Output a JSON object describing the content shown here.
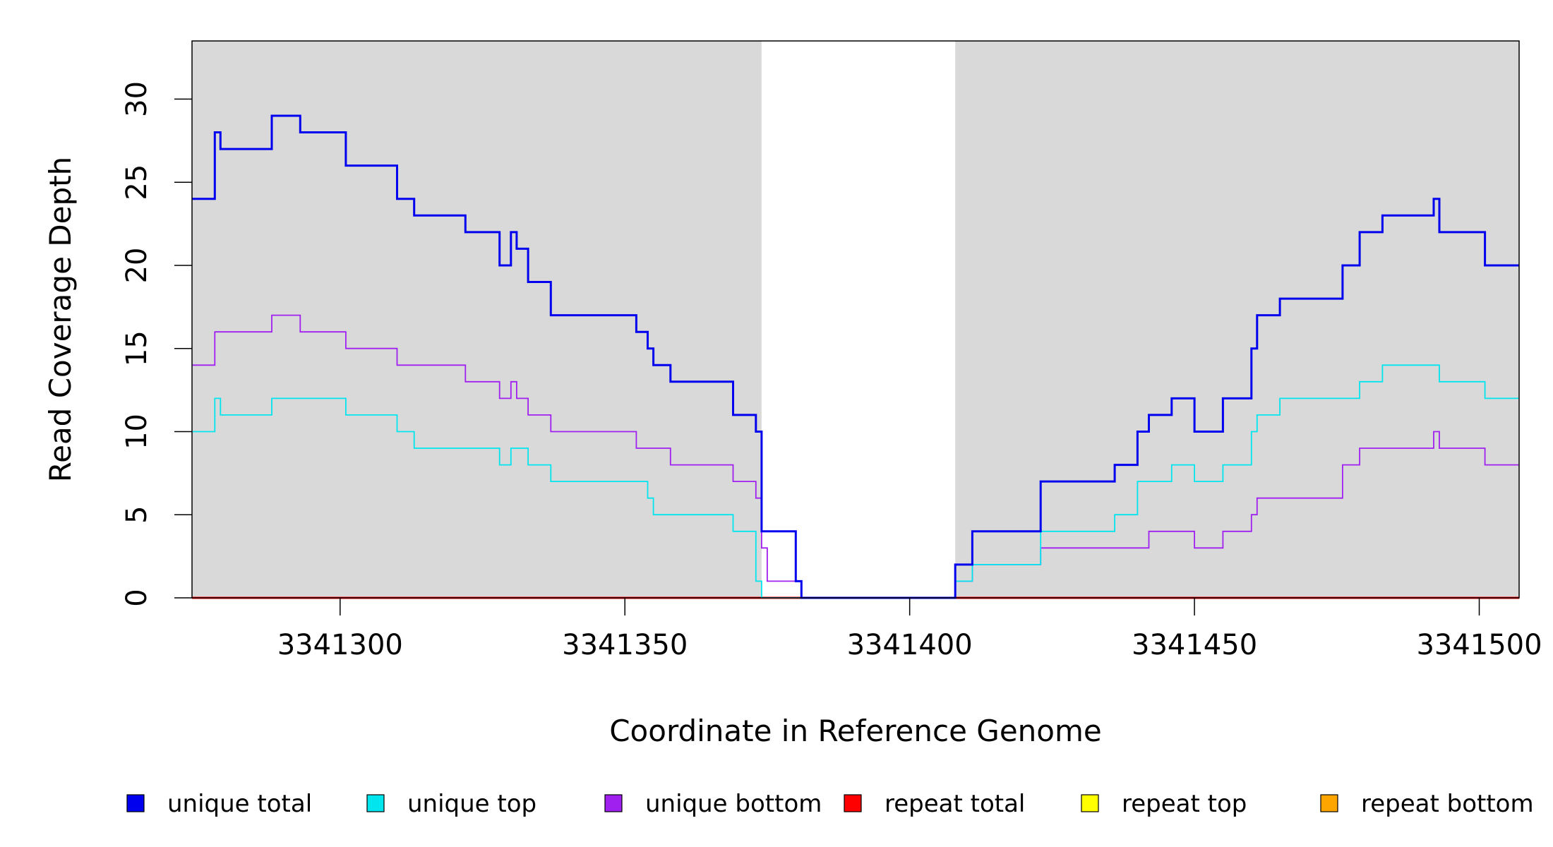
{
  "chart_data": {
    "type": "line",
    "line_shape": "step",
    "xlabel": "Coordinate in Reference Genome",
    "ylabel": "Read Coverage Depth",
    "xlim": [
      3341274,
      3341507
    ],
    "ylim": [
      0,
      33.5
    ],
    "x_ticks": [
      3341300,
      3341350,
      3341400,
      3341450,
      3341500
    ],
    "x_tick_labels": [
      "3341300",
      "3341350",
      "3341400",
      "3341450",
      "3341500"
    ],
    "y_ticks": [
      0,
      5,
      10,
      15,
      20,
      25,
      30
    ],
    "y_tick_labels": [
      "0",
      "5",
      "10",
      "15",
      "20",
      "25",
      "30"
    ],
    "background_color": "#d9d9d9",
    "shaded_regions": [
      [
        3341274,
        3341374
      ],
      [
        3341408,
        3341507
      ]
    ],
    "grid": false,
    "legend_position": "bottom",
    "series": [
      {
        "name": "unique total",
        "color": "#0000ee",
        "x": [
          3341274,
          3341278,
          3341279,
          3341288,
          3341293,
          3341301,
          3341310,
          3341313,
          3341322,
          3341328,
          3341330,
          3341331,
          3341333,
          3341337,
          3341352,
          3341354,
          3341355,
          3341358,
          3341369,
          3341373,
          3341374,
          3341380,
          3341381,
          3341408,
          3341411,
          3341423,
          3341436,
          3341440,
          3341442,
          3341446,
          3341450,
          3341455,
          3341460,
          3341461,
          3341465,
          3341476,
          3341479,
          3341483,
          3341492,
          3341493,
          3341501,
          3341507
        ],
        "y": [
          24,
          28,
          27,
          29,
          28,
          26,
          24,
          23,
          22,
          20,
          22,
          21,
          19,
          17,
          16,
          15,
          14,
          13,
          11,
          10,
          4,
          1,
          0,
          2,
          4,
          7,
          8,
          10,
          11,
          12,
          10,
          12,
          15,
          17,
          18,
          20,
          22,
          23,
          24,
          22,
          20,
          20
        ]
      },
      {
        "name": "unique top",
        "color": "#00e5ee",
        "x": [
          3341274,
          3341278,
          3341279,
          3341288,
          3341301,
          3341310,
          3341313,
          3341328,
          3341330,
          3341333,
          3341337,
          3341354,
          3341355,
          3341369,
          3341373,
          3341374,
          3341375,
          3341381,
          3341408,
          3341411,
          3341423,
          3341436,
          3341440,
          3341446,
          3341450,
          3341455,
          3341460,
          3341461,
          3341465,
          3341479,
          3341483,
          3341493,
          3341501,
          3341507
        ],
        "y": [
          10,
          12,
          11,
          12,
          11,
          10,
          9,
          8,
          9,
          8,
          7,
          6,
          5,
          4,
          1,
          0,
          0,
          0,
          1,
          2,
          4,
          5,
          7,
          8,
          7,
          8,
          10,
          11,
          12,
          13,
          14,
          13,
          12,
          12
        ]
      },
      {
        "name": "unique bottom",
        "color": "#a020f0",
        "x": [
          3341274,
          3341278,
          3341288,
          3341293,
          3341301,
          3341310,
          3341322,
          3341328,
          3341330,
          3341331,
          3341333,
          3341337,
          3341352,
          3341358,
          3341369,
          3341373,
          3341374,
          3341375,
          3341381,
          3341408,
          3341411,
          3341423,
          3341442,
          3341450,
          3341455,
          3341460,
          3341461,
          3341476,
          3341479,
          3341492,
          3341493,
          3341501,
          3341507
        ],
        "y": [
          14,
          16,
          17,
          16,
          15,
          14,
          13,
          12,
          13,
          12,
          11,
          10,
          9,
          8,
          7,
          6,
          3,
          1,
          0,
          1,
          2,
          3,
          4,
          3,
          4,
          5,
          6,
          8,
          9,
          10,
          9,
          8,
          8
        ]
      },
      {
        "name": "repeat total",
        "color": "#ff0000",
        "x": [
          3341274,
          3341507
        ],
        "y": [
          0,
          0
        ]
      },
      {
        "name": "repeat top",
        "color": "#ffff00",
        "x": [
          3341274,
          3341507
        ],
        "y": [
          0,
          0
        ]
      },
      {
        "name": "repeat bottom",
        "color": "#ffa500",
        "x": [
          3341274,
          3341507
        ],
        "y": [
          0,
          0
        ]
      }
    ]
  }
}
